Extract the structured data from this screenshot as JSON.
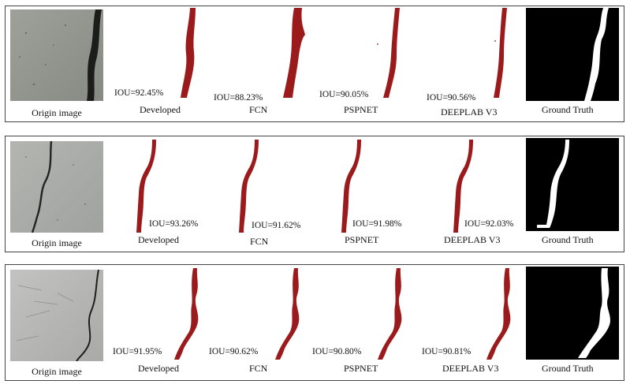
{
  "colors": {
    "prediction": "#9b1b1d",
    "border": "#444444",
    "ground_truth_bg": "#000000",
    "ground_truth_crack": "#ffffff"
  },
  "rows": [
    {
      "origin_caption": "Origin image",
      "ground_truth_caption": "Ground Truth",
      "predictions": [
        {
          "method": "Developed",
          "iou": "IOU=92.45%"
        },
        {
          "method": "FCN",
          "iou": "IOU=88.23%"
        },
        {
          "method": "PSPNET",
          "iou": "IOU=90.05%"
        },
        {
          "method": "DEEPLAB V3",
          "iou": "IOU=90.56%"
        }
      ]
    },
    {
      "origin_caption": "Origin image",
      "ground_truth_caption": "Ground Truth",
      "predictions": [
        {
          "method": "Developed",
          "iou": "IOU=93.26%"
        },
        {
          "method": "FCN",
          "iou": "IOU=91.62%"
        },
        {
          "method": "PSPNET",
          "iou": "IOU=91.98%"
        },
        {
          "method": "DEEPLAB V3",
          "iou": "IOU=92.03%"
        }
      ]
    },
    {
      "origin_caption": "Origin image",
      "ground_truth_caption": "Ground Truth",
      "predictions": [
        {
          "method": "Developed",
          "iou": "IOU=91.95%"
        },
        {
          "method": "FCN",
          "iou": "IOU=90.62%"
        },
        {
          "method": "PSPNET",
          "iou": "IOU=90.80%"
        },
        {
          "method": "DEEPLAB V3",
          "iou": "IOU=90.81%"
        }
      ]
    }
  ]
}
